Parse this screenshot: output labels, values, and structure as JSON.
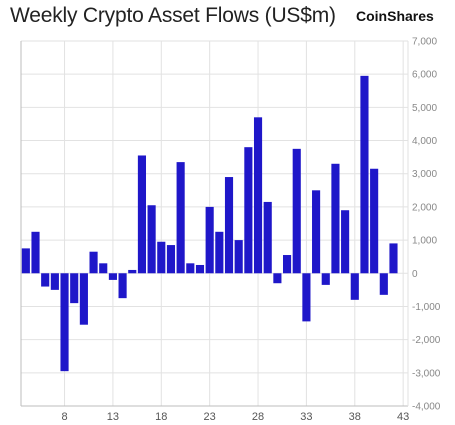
{
  "header": {
    "title": "Weekly Crypto Asset Flows (US$m)",
    "brand": "CoinShares"
  },
  "colors": {
    "bar": "#1f17c9",
    "grid": "#e2e2e2",
    "axis": "#bdbdbd"
  },
  "chart_data": {
    "type": "bar",
    "title": "Weekly Crypto Asset Flows (US$m)",
    "xlabel": "",
    "ylabel": "",
    "ylim": [
      -4000,
      7000
    ],
    "yticks": [
      7000,
      6000,
      5000,
      4000,
      3000,
      2000,
      1000,
      0,
      -1000,
      -2000,
      -3000,
      -4000
    ],
    "ytick_labels": [
      "7,000",
      "6,000",
      "5,000",
      "4,000",
      "3,000",
      "2,000",
      "1,000",
      "0",
      "-1,000",
      "-2,000",
      "-3,000",
      "-4,000"
    ],
    "xticks": [
      8,
      13,
      18,
      23,
      28,
      33,
      38,
      43
    ],
    "categories": [
      4,
      5,
      6,
      7,
      8,
      9,
      10,
      11,
      12,
      13,
      14,
      15,
      16,
      17,
      18,
      19,
      20,
      21,
      22,
      23,
      24,
      25,
      26,
      27,
      28,
      29,
      30,
      31,
      32,
      33,
      34,
      35,
      36,
      37,
      38,
      39,
      40,
      41,
      42,
      43
    ],
    "values": [
      750,
      1250,
      -400,
      -500,
      -2950,
      -900,
      -1550,
      650,
      300,
      -200,
      -750,
      100,
      3550,
      2050,
      950,
      850,
      3350,
      300,
      250,
      2000,
      1250,
      2900,
      1000,
      3800,
      4700,
      2150,
      -300,
      550,
      3750,
      -1450,
      2500,
      -350,
      3300,
      1900,
      -800,
      5950,
      3150,
      -650,
      900,
      0
    ],
    "grid": true
  }
}
